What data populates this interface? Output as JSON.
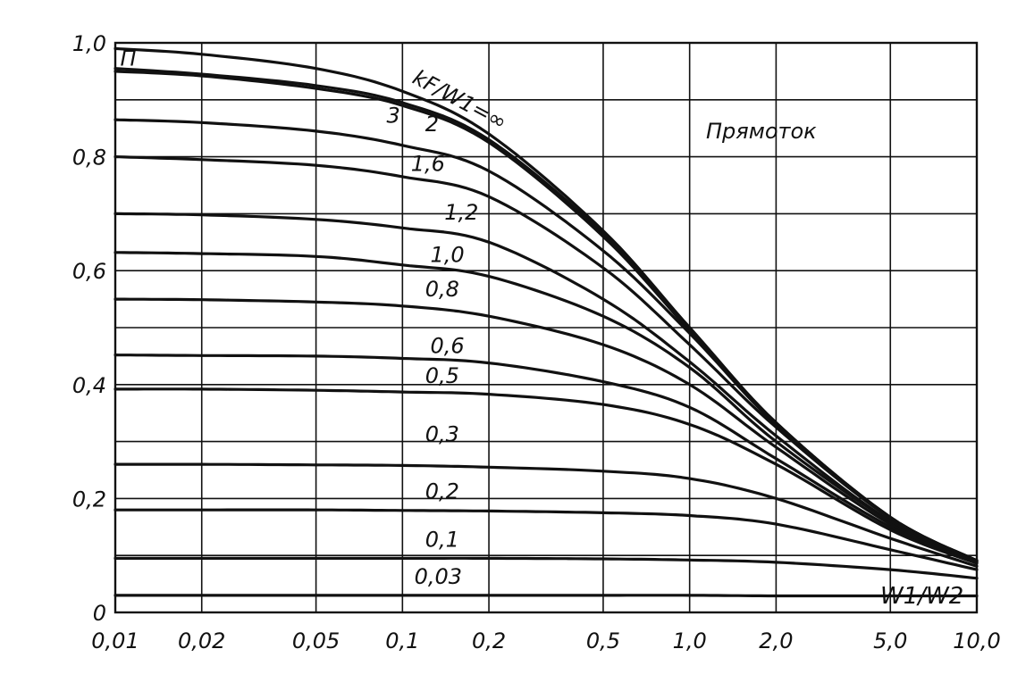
{
  "chart_data": {
    "type": "line",
    "title": "",
    "xlabel": "W1/W2",
    "ylabel": "",
    "x_scale": "log",
    "xlim": [
      0.01,
      10.0
    ],
    "ylim": [
      0,
      1.0
    ],
    "grid": true,
    "annotation": "Прямоток",
    "curve_family_label": "kF/W1=∞",
    "x_ticks": [
      {
        "value": 0.01,
        "label": "0,01"
      },
      {
        "value": 0.02,
        "label": "0,02"
      },
      {
        "value": 0.05,
        "label": "0,05"
      },
      {
        "value": 0.1,
        "label": "0,1"
      },
      {
        "value": 0.2,
        "label": "0,2"
      },
      {
        "value": 0.5,
        "label": "0,5"
      },
      {
        "value": 1.0,
        "label": "1,0"
      },
      {
        "value": 2.0,
        "label": "2,0"
      },
      {
        "value": 5.0,
        "label": "5,0"
      },
      {
        "value": 10.0,
        "label": "10,0"
      }
    ],
    "y_ticks": [
      {
        "value": 0,
        "label": "0"
      },
      {
        "value": 0.2,
        "label": "0,2"
      },
      {
        "value": 0.4,
        "label": "0,4"
      },
      {
        "value": 0.6,
        "label": "0,6"
      },
      {
        "value": 0.8,
        "label": "0,8"
      },
      {
        "value": 1.0,
        "label": "1,0"
      }
    ],
    "x_grid": [
      0.01,
      0.02,
      0.05,
      0.1,
      0.2,
      0.5,
      1.0,
      2.0,
      5.0,
      10.0
    ],
    "y_grid": [
      0.1,
      0.2,
      0.3,
      0.4,
      0.5,
      0.6,
      0.7,
      0.8,
      0.9,
      1.0
    ],
    "series": [
      {
        "name": "∞",
        "x": [
          0.01,
          0.02,
          0.05,
          0.1,
          0.2,
          0.5,
          1.0,
          2.0,
          5.0,
          10.0
        ],
        "y": [
          0.99,
          0.98,
          0.955,
          0.915,
          0.84,
          0.67,
          0.5,
          0.333,
          0.167,
          0.091
        ]
      },
      {
        "name": "П",
        "x": [
          0.01,
          0.02,
          0.05,
          0.1,
          0.2,
          0.5,
          1.0,
          2.0,
          5.0,
          10.0
        ],
        "y": [
          0.955,
          0.945,
          0.925,
          0.895,
          0.83,
          0.665,
          0.5,
          0.333,
          0.167,
          0.091
        ]
      },
      {
        "name": "3",
        "x": [
          0.01,
          0.02,
          0.05,
          0.1,
          0.2,
          0.5,
          1.0,
          2.0,
          5.0,
          10.0
        ],
        "y": [
          0.95,
          0.942,
          0.92,
          0.89,
          0.825,
          0.66,
          0.495,
          0.333,
          0.167,
          0.091
        ]
      },
      {
        "name": "2",
        "x": [
          0.01,
          0.02,
          0.05,
          0.1,
          0.2,
          0.5,
          1.0,
          2.0,
          5.0,
          10.0
        ],
        "y": [
          0.865,
          0.86,
          0.845,
          0.82,
          0.775,
          0.635,
          0.49,
          0.33,
          0.167,
          0.091
        ]
      },
      {
        "name": "1,6",
        "x": [
          0.01,
          0.02,
          0.05,
          0.1,
          0.2,
          0.5,
          1.0,
          2.0,
          5.0,
          10.0
        ],
        "y": [
          0.8,
          0.795,
          0.785,
          0.765,
          0.73,
          0.605,
          0.47,
          0.325,
          0.165,
          0.09
        ]
      },
      {
        "name": "1,2",
        "x": [
          0.01,
          0.02,
          0.05,
          0.1,
          0.2,
          0.5,
          1.0,
          2.0,
          5.0,
          10.0
        ],
        "y": [
          0.7,
          0.698,
          0.69,
          0.675,
          0.65,
          0.55,
          0.44,
          0.31,
          0.16,
          0.089
        ]
      },
      {
        "name": "1,0",
        "x": [
          0.01,
          0.02,
          0.05,
          0.1,
          0.2,
          0.5,
          1.0,
          2.0,
          5.0,
          10.0
        ],
        "y": [
          0.632,
          0.63,
          0.625,
          0.61,
          0.59,
          0.52,
          0.43,
          0.3,
          0.16,
          0.089
        ]
      },
      {
        "name": "0,8",
        "x": [
          0.01,
          0.02,
          0.05,
          0.1,
          0.2,
          0.5,
          1.0,
          2.0,
          5.0,
          10.0
        ],
        "y": [
          0.55,
          0.549,
          0.545,
          0.538,
          0.52,
          0.47,
          0.4,
          0.29,
          0.155,
          0.088
        ]
      },
      {
        "name": "0,6",
        "x": [
          0.01,
          0.02,
          0.05,
          0.1,
          0.2,
          0.5,
          1.0,
          2.0,
          5.0,
          10.0
        ],
        "y": [
          0.452,
          0.451,
          0.45,
          0.446,
          0.438,
          0.405,
          0.36,
          0.27,
          0.15,
          0.087
        ]
      },
      {
        "name": "0,5",
        "x": [
          0.01,
          0.02,
          0.05,
          0.1,
          0.2,
          0.5,
          1.0,
          2.0,
          5.0,
          10.0
        ],
        "y": [
          0.392,
          0.392,
          0.39,
          0.387,
          0.383,
          0.365,
          0.33,
          0.26,
          0.145,
          0.086
        ]
      },
      {
        "name": "0,3",
        "x": [
          0.01,
          0.02,
          0.05,
          0.1,
          0.2,
          0.5,
          1.0,
          2.0,
          5.0,
          10.0
        ],
        "y": [
          0.26,
          0.26,
          0.259,
          0.258,
          0.255,
          0.248,
          0.235,
          0.2,
          0.13,
          0.081
        ]
      },
      {
        "name": "0,2",
        "x": [
          0.01,
          0.02,
          0.05,
          0.1,
          0.2,
          0.5,
          1.0,
          2.0,
          5.0,
          10.0
        ],
        "y": [
          0.18,
          0.18,
          0.18,
          0.179,
          0.178,
          0.175,
          0.17,
          0.155,
          0.11,
          0.075
        ]
      },
      {
        "name": "0,1",
        "x": [
          0.01,
          0.02,
          0.05,
          0.1,
          0.2,
          0.5,
          1.0,
          2.0,
          5.0,
          10.0
        ],
        "y": [
          0.095,
          0.095,
          0.095,
          0.095,
          0.095,
          0.094,
          0.092,
          0.088,
          0.075,
          0.06
        ]
      },
      {
        "name": "0,03",
        "x": [
          0.01,
          0.02,
          0.05,
          0.1,
          0.2,
          0.5,
          1.0,
          2.0,
          5.0,
          10.0
        ],
        "y": [
          0.03,
          0.03,
          0.03,
          0.03,
          0.03,
          0.03,
          0.03,
          0.029,
          0.029,
          0.029
        ]
      }
    ],
    "curve_labels": [
      {
        "text": "П",
        "x": 0.0104,
        "y": 0.96
      },
      {
        "text": "3",
        "x": 0.088,
        "y": 0.86
      },
      {
        "text": "2",
        "x": 0.12,
        "y": 0.845
      },
      {
        "text": "1,6",
        "x": 0.107,
        "y": 0.775
      },
      {
        "text": "1,2",
        "x": 0.14,
        "y": 0.69
      },
      {
        "text": "1,0",
        "x": 0.125,
        "y": 0.615
      },
      {
        "text": "0,8",
        "x": 0.12,
        "y": 0.555
      },
      {
        "text": "0,6",
        "x": 0.125,
        "y": 0.455
      },
      {
        "text": "0,5",
        "x": 0.12,
        "y": 0.403
      },
      {
        "text": "0,3",
        "x": 0.12,
        "y": 0.3
      },
      {
        "text": "0,2",
        "x": 0.12,
        "y": 0.2
      },
      {
        "text": "0,1",
        "x": 0.12,
        "y": 0.115
      },
      {
        "text": "0,03",
        "x": 0.11,
        "y": 0.05
      }
    ]
  }
}
